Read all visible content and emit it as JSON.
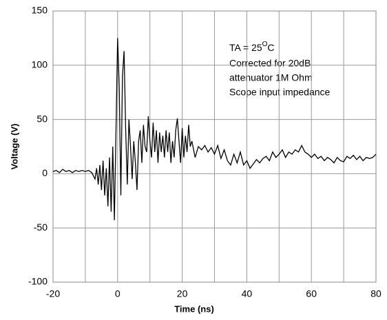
{
  "chart_data": {
    "type": "line",
    "x_label": "Time (ns)",
    "y_label": "Voltage (V)",
    "annotation_first": {
      "text": "TA = 25",
      "sup": "O",
      "after": "C"
    },
    "annotation_lines": [
      "Corrected for 20dB",
      "attenuator 1M Ohm",
      "Scope input impedance"
    ],
    "xlim": [
      -20,
      80
    ],
    "xticks": [
      -20,
      0,
      20,
      40,
      60,
      80
    ],
    "ylim": [
      -100,
      150
    ],
    "yticks": [
      -100,
      -50,
      0,
      50,
      100,
      150
    ],
    "grid": true,
    "series": [
      {
        "color": "#000000",
        "x": [
          -20,
          -19,
          -18,
          -17,
          -16,
          -15,
          -14,
          -13,
          -12,
          -11,
          -10,
          -9,
          -8,
          -7,
          -6.5,
          -6,
          -5.5,
          -5,
          -4.5,
          -4,
          -3.5,
          -3,
          -2.5,
          -2,
          -1.5,
          -1,
          -0.5,
          0,
          0.5,
          1,
          1.5,
          2,
          2.5,
          3,
          3.5,
          4,
          4.5,
          5,
          5.5,
          6,
          6.5,
          7,
          7.5,
          8,
          8.5,
          9,
          9.5,
          10,
          10.5,
          11,
          11.5,
          12,
          12.5,
          13,
          13.5,
          14,
          14.5,
          15,
          15.5,
          16,
          16.5,
          17,
          17.5,
          18,
          18.5,
          19,
          19.5,
          20,
          20.5,
          21,
          21.5,
          22,
          22.5,
          23,
          24,
          25,
          26,
          27,
          28,
          29,
          30,
          31,
          32,
          33,
          34,
          35,
          36,
          37,
          38,
          39,
          40,
          41,
          42,
          43,
          44,
          45,
          46,
          47,
          48,
          49,
          50,
          51,
          52,
          53,
          54,
          55,
          56,
          57,
          58,
          59,
          60,
          61,
          62,
          63,
          64,
          65,
          66,
          67,
          68,
          69,
          70,
          71,
          72,
          73,
          74,
          75,
          76,
          77,
          78,
          79,
          80
        ],
        "values": [
          2,
          3,
          1,
          4,
          2,
          3,
          1,
          3,
          2,
          3,
          2,
          3,
          1,
          -5,
          5,
          -10,
          8,
          -15,
          12,
          -20,
          5,
          -30,
          15,
          -35,
          25,
          -43,
          40,
          125,
          80,
          -20,
          90,
          113,
          40,
          -10,
          50,
          25,
          -5,
          30,
          10,
          -15,
          30,
          40,
          10,
          45,
          25,
          20,
          53,
          30,
          15,
          47,
          20,
          40,
          10,
          38,
          20,
          35,
          15,
          40,
          20,
          38,
          10,
          30,
          15,
          40,
          51,
          30,
          10,
          42,
          15,
          35,
          20,
          45,
          25,
          30,
          15,
          25,
          22,
          26,
          20,
          24,
          18,
          26,
          14,
          22,
          12,
          8,
          18,
          10,
          20,
          8,
          12,
          5,
          9,
          13,
          10,
          14,
          16,
          12,
          20,
          15,
          18,
          22,
          15,
          20,
          18,
          22,
          20,
          26,
          20,
          18,
          15,
          18,
          14,
          16,
          12,
          15,
          13,
          10,
          15,
          12,
          11,
          16,
          14,
          17,
          13,
          16,
          12,
          15,
          14,
          15,
          18
        ]
      }
    ]
  }
}
